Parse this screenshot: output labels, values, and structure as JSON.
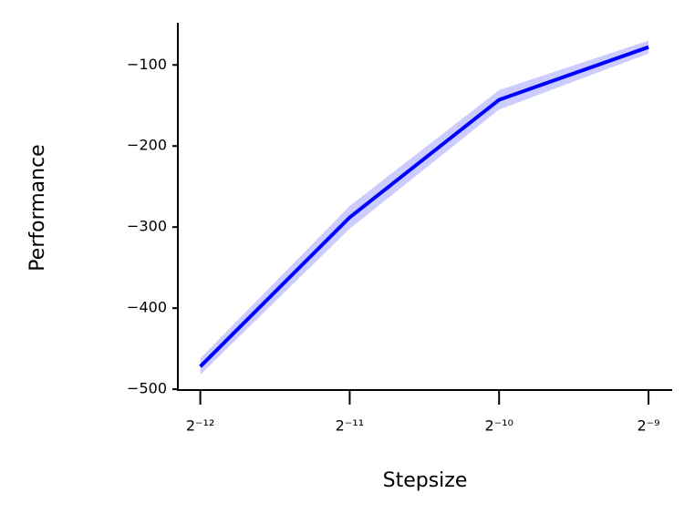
{
  "chart_data": {
    "type": "line",
    "x_label": "Stepsize",
    "y_label": "Performance",
    "x": [
      0.000244140625,
      0.00048828125,
      0.0009765625,
      0.001953125
    ],
    "series": [
      {
        "color": "#0000ff",
        "band_color": "#ccccff",
        "values": [
          -472,
          -288,
          -143,
          -78
        ],
        "lower": [
          -482,
          -302,
          -155,
          -86
        ],
        "upper": [
          -462,
          -274,
          -131,
          -70
        ]
      }
    ],
    "xscale": "log2",
    "xlim": [
      0.00022,
      0.00218
    ],
    "xticks": [
      {
        "value": 0.000244140625,
        "label": "2⁻¹²"
      },
      {
        "value": 0.00048828125,
        "label": "2⁻¹¹"
      },
      {
        "value": 0.0009765625,
        "label": "2⁻¹⁰"
      },
      {
        "value": 0.001953125,
        "label": "2⁻⁹"
      }
    ],
    "ylim": [
      -501,
      -48
    ],
    "yticks": [
      {
        "value": -100,
        "label": "−100"
      },
      {
        "value": -200,
        "label": "−200"
      },
      {
        "value": -300,
        "label": "−300"
      },
      {
        "value": -400,
        "label": "−400"
      },
      {
        "value": -500,
        "label": "−500"
      }
    ],
    "grid": false
  }
}
